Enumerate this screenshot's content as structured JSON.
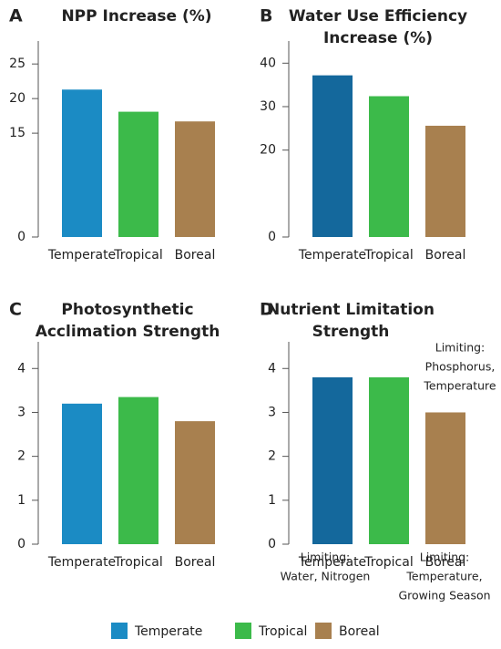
{
  "chart_data": [
    {
      "type": "bar",
      "letter": "A",
      "title": [
        "NPP Increase (%)"
      ],
      "categories": [
        "Temperate",
        "Tropical",
        "Boreal"
      ],
      "values": [
        21.3,
        18.1,
        16.7
      ],
      "colors": [
        "#1b8bc4",
        "#3cba4a",
        "#a8804f"
      ],
      "ylim": [
        0,
        27
      ],
      "yticks": [
        0,
        15,
        20,
        25
      ]
    },
    {
      "type": "bar",
      "letter": "B",
      "title": [
        "Water Use Efficiency",
        "Increase (%)"
      ],
      "categories": [
        "Temperate",
        "Tropical",
        "Boreal"
      ],
      "values": [
        37.2,
        32.4,
        25.6
      ],
      "colors": [
        "#14689c",
        "#3cba4a",
        "#a8804f"
      ],
      "ylim": [
        0,
        43
      ],
      "yticks": [
        0,
        20,
        30,
        40
      ]
    },
    {
      "type": "bar",
      "letter": "C",
      "title": [
        "Photosynthetic",
        "Acclimation Strength"
      ],
      "categories": [
        "Temperate",
        "Tropical",
        "Boreal"
      ],
      "values": [
        3.2,
        3.35,
        2.8
      ],
      "colors": [
        "#1b8bc4",
        "#3cba4a",
        "#a8804f"
      ],
      "ylim": [
        0,
        4.4
      ],
      "yticks": [
        0,
        1,
        2,
        3,
        4
      ]
    },
    {
      "type": "bar",
      "letter": "D",
      "title": [
        "Nutrient Limitation",
        "Strength"
      ],
      "categories": [
        "Temperate",
        "Tropical",
        "Boreal"
      ],
      "values": [
        3.8,
        3.8,
        3.0
      ],
      "colors": [
        "#14689c",
        "#3cba4a",
        "#a8804f"
      ],
      "ylim": [
        0,
        4.4
      ],
      "yticks": [
        0,
        1,
        2,
        3,
        4
      ],
      "annotations": [
        [
          "Limiting:",
          "Water, Nitrogen"
        ],
        [
          "Limiting:",
          "Phosphorus,",
          "Temperature"
        ],
        [
          "Limiting:",
          "Temperature,",
          "Growing Season"
        ]
      ]
    }
  ]
}
